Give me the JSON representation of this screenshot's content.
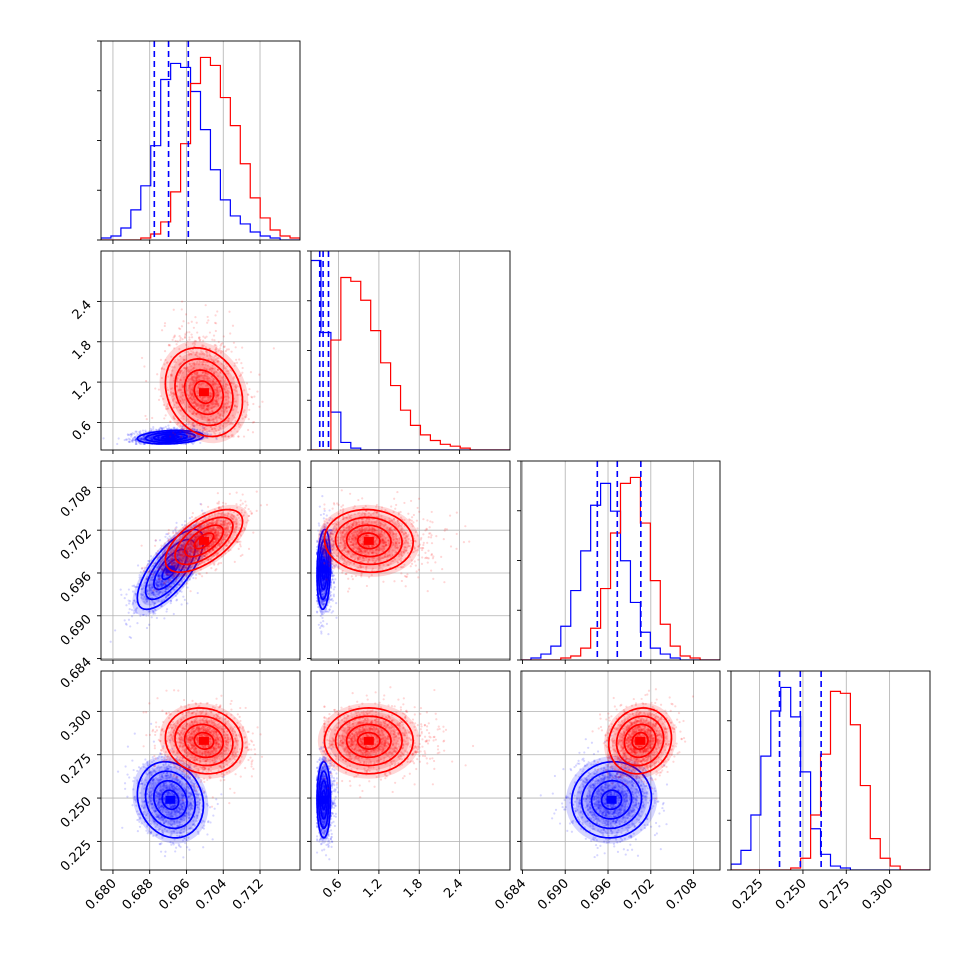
{
  "colors": {
    "series_a": "#0000ff",
    "series_b": "#ff0000",
    "grid": "#b0b0b0",
    "frame": "#000000"
  },
  "chart_data": {
    "type": "corner",
    "grid": true,
    "parameters": [
      {
        "range": [
          0.6774,
          0.7207
        ],
        "ticks": [
          0.68,
          0.688,
          0.696,
          0.704,
          0.712
        ],
        "tick_labels": [
          "0.680",
          "0.688",
          "0.696",
          "0.704",
          "0.712"
        ]
      },
      {
        "range": [
          0.19,
          3.15
        ],
        "ticks": [
          0.6,
          1.2,
          1.8,
          2.4
        ],
        "tick_labels": [
          "0.6",
          "1.2",
          "1.8",
          "2.4"
        ]
      },
      {
        "range": [
          0.6838,
          0.7117
        ],
        "ticks": [
          0.684,
          0.69,
          0.696,
          0.702,
          0.708
        ],
        "tick_labels": [
          "0.684",
          "0.690",
          "0.696",
          "0.702",
          "0.708"
        ]
      },
      {
        "range": [
          0.2085,
          0.3233
        ],
        "ticks": [
          0.225,
          0.25,
          0.275,
          0.3
        ],
        "tick_labels": [
          "0.225",
          "0.250",
          "0.275",
          "0.300"
        ]
      }
    ],
    "series": [
      {
        "color": "#0000ff",
        "mean": [
          0.6925,
          0.38,
          0.6965,
          0.249
        ],
        "std": [
          0.0036,
          0.05,
          0.0028,
          0.011
        ],
        "quantiles": [
          [
            0.689,
            0.6921,
            0.6964
          ],
          [
            0.32,
            0.37,
            0.45
          ],
          [
            0.6945,
            0.6973,
            0.7006
          ],
          [
            0.2365,
            0.2485,
            0.2605
          ]
        ],
        "corr": {
          "0-1": 0.2,
          "0-2": 0.72,
          "0-3": -0.15,
          "1-2": 0.15,
          "1-3": 0.0,
          "2-3": 0.05
        }
      },
      {
        "color": "#ff0000",
        "mean": [
          0.6998,
          1.05,
          0.7005,
          0.283
        ],
        "std": [
          0.0042,
          0.33,
          0.0022,
          0.0095
        ],
        "quantiles": null,
        "corr": {
          "0-1": -0.2,
          "0-2": 0.62,
          "0-3": -0.1,
          "1-2": -0.05,
          "1-3": 0.0,
          "2-3": 0.1
        }
      }
    ],
    "histograms": [
      {
        "param": 0,
        "edges": [
          0.6774,
          0.7207
        ],
        "series_a": [
          1,
          2,
          6,
          15,
          27,
          47,
          80,
          88,
          86,
          74,
          55,
          35,
          20,
          12,
          8,
          4,
          2,
          1,
          0,
          0
        ],
        "series_b": [
          0,
          0,
          0,
          0,
          1,
          3,
          9,
          24,
          48,
          78,
          91,
          87,
          71,
          57,
          38,
          21,
          11,
          5,
          2,
          1
        ]
      },
      {
        "param": 1,
        "edges": [
          0.19,
          3.15
        ],
        "series_a": [
          100,
          62,
          20,
          4,
          1,
          0,
          0,
          0,
          0,
          0,
          0,
          0,
          0,
          0,
          0,
          0,
          0,
          0,
          0,
          0
        ],
        "series_b": [
          0,
          0,
          58,
          91,
          89,
          79,
          63,
          46,
          34,
          21,
          13,
          8,
          5,
          3,
          2,
          1,
          0,
          0,
          0,
          0
        ],
        "ymax": 105
      },
      {
        "param": 2,
        "edges": [
          0.6838,
          0.7117
        ],
        "series_a": [
          0,
          1,
          3,
          7,
          17,
          35,
          55,
          78,
          89,
          75,
          50,
          29,
          14,
          6,
          3,
          1,
          0,
          0,
          0,
          0
        ],
        "series_b": [
          0,
          0,
          0,
          0,
          1,
          2,
          6,
          16,
          36,
          64,
          89,
          92,
          69,
          40,
          18,
          7,
          2,
          1,
          0,
          0
        ]
      },
      {
        "param": 3,
        "edges": [
          0.2085,
          0.3233
        ],
        "series_a": [
          3,
          10,
          28,
          58,
          81,
          93,
          78,
          50,
          21,
          8,
          2,
          1,
          0,
          0,
          0,
          0,
          0,
          0,
          0,
          0
        ],
        "series_b": [
          0,
          0,
          0,
          0,
          0,
          0,
          1,
          6,
          28,
          59,
          91,
          90,
          74,
          43,
          16,
          6,
          2,
          0,
          0,
          0
        ]
      }
    ]
  }
}
